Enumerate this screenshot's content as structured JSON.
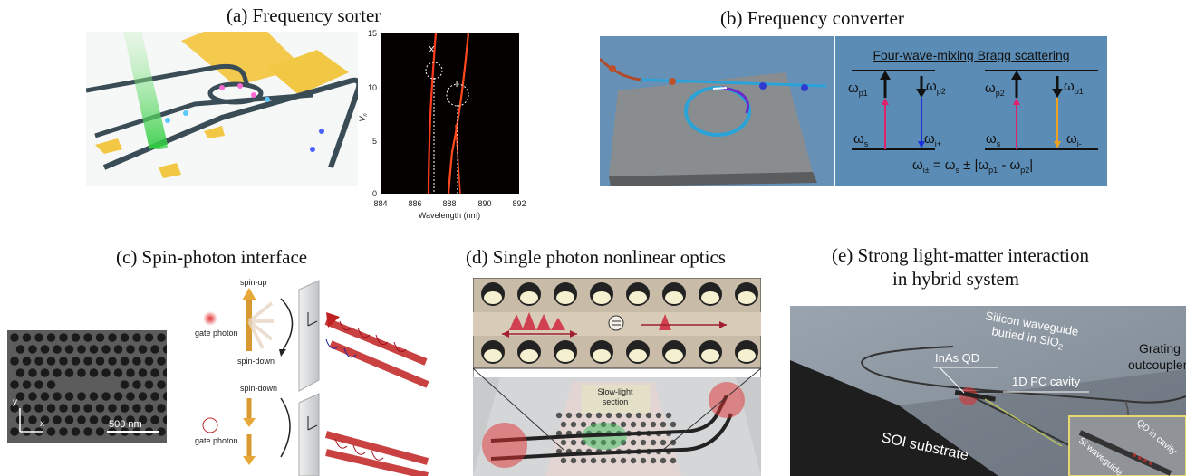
{
  "panels": {
    "a": {
      "title": "(a) Frequency sorter",
      "chart": {
        "ylabel": "V",
        "ylabel_sub": "n",
        "xlabel": "Wavelength (nm)",
        "xticks": [
          "884",
          "886",
          "888",
          "890",
          "892"
        ],
        "yticks": [
          "0",
          "5",
          "10",
          "15"
        ],
        "marker_x": "X",
        "marker_t": "T"
      }
    },
    "b": {
      "title": "(b) Frequency converter",
      "heading": "Four-wave-mixing Bragg scattering",
      "w": "ω",
      "sub_p1": "p1",
      "sub_p2": "p2",
      "sub_s": "s",
      "sub_iplus": "i+",
      "sub_iminus": "i-",
      "sub_ipm": "i±",
      "eq_mid": " = ω",
      "eq_pm": "s",
      "eq_tail": " ± |ω",
      "eq_minus": " - ω",
      "eq_end": "|"
    },
    "c": {
      "title": "(c) Spin-photon interface",
      "scale": "500 nm",
      "axis_y": "y",
      "axis_x": "x",
      "spin_up": "spin-up",
      "spin_down_1": "spin-down",
      "spin_down_2": "spin-down",
      "gate_1": "gate photon",
      "gate_2": "gate photon"
    },
    "d": {
      "title": "(d) Single photon nonlinear optics",
      "section": "Slow-light section",
      "section_1": "Slow-light",
      "section_2": "section"
    },
    "e": {
      "title_1": "(e) Strong light-matter interaction",
      "title_2": "in hybrid system",
      "wg_1": "Silicon waveguide",
      "wg_2": "buried in SiO",
      "wg_2_sub": "2",
      "qd": "InAs QD",
      "cavity": "1D PC cavity",
      "grating_1": "Grating",
      "grating_2": "outcoupler",
      "soi": "SOI substrate",
      "inset_1": "Si waveguide",
      "inset_2": "QD in cavity"
    }
  },
  "colors": {
    "red_line": "#ff3b1f",
    "gold": "#f2c744",
    "panel_b_bg": "#5a8cb5"
  }
}
